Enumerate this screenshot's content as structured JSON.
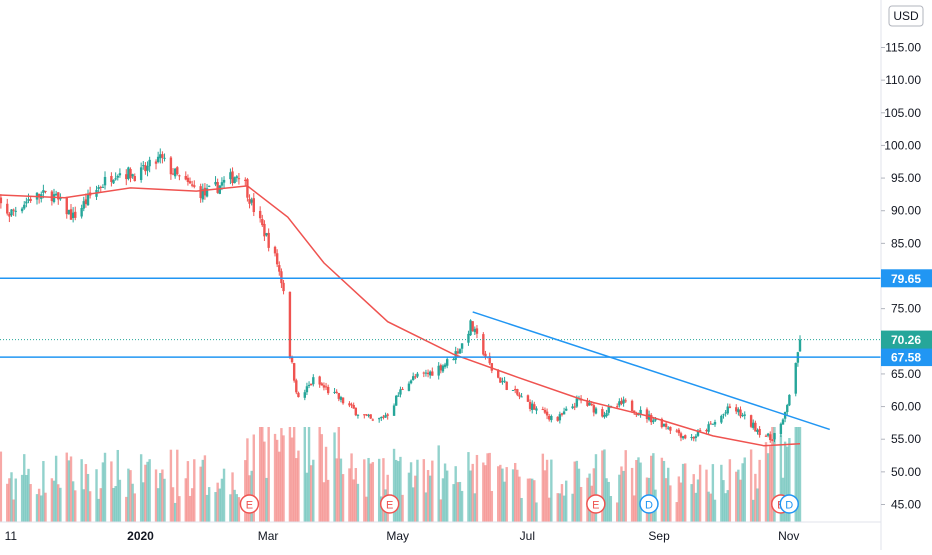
{
  "currency_label": "USD",
  "colors": {
    "up": "#26a69a",
    "down": "#ef5350",
    "ma": "#ef5350",
    "hline": "#2196f3",
    "trendline": "#2196f3",
    "last_price_bg": "#26a69a",
    "event_icon": "#ef5350",
    "dividend_icon": "#2196f3",
    "grid": "#f0f3fa"
  },
  "chart_data": {
    "type": "candlestick",
    "grid": false,
    "ylim": [
      43,
      119
    ],
    "y_ticks": [
      "115.00",
      "110.00",
      "105.00",
      "100.00",
      "95.00",
      "90.00",
      "85.00",
      "80.00",
      "75.00",
      "70.00",
      "65.00",
      "60.00",
      "55.00",
      "50.00",
      "45.00"
    ],
    "x_ticks": [
      {
        "label": "11",
        "date": "2019-11-01",
        "bold": false
      },
      {
        "label": "2020",
        "date": "2020-01-01",
        "bold": true
      },
      {
        "label": "Mar",
        "date": "2020-03-01",
        "bold": false
      },
      {
        "label": "May",
        "date": "2020-05-01",
        "bold": false
      },
      {
        "label": "Jul",
        "date": "2020-07-01",
        "bold": false
      },
      {
        "label": "Sep",
        "date": "2020-09-01",
        "bold": false
      },
      {
        "label": "Nov",
        "date": "2020-11-01",
        "bold": false
      }
    ],
    "price_path": [
      [
        "2019-10-25",
        93.0
      ],
      [
        "2019-11-05",
        89.5
      ],
      [
        "2019-11-15",
        92.0
      ],
      [
        "2019-11-25",
        92.5
      ],
      [
        "2019-12-05",
        89.0
      ],
      [
        "2019-12-15",
        93.0
      ],
      [
        "2019-12-25",
        96.0
      ],
      [
        "2020-01-05",
        95.5
      ],
      [
        "2020-01-15",
        98.0
      ],
      [
        "2020-01-25",
        94.5
      ],
      [
        "2020-02-05",
        92.5
      ],
      [
        "2020-02-15",
        94.5
      ],
      [
        "2020-02-22",
        96.0
      ],
      [
        "2020-02-27",
        91.0
      ],
      [
        "2020-03-05",
        86.0
      ],
      [
        "2020-03-10",
        82.0
      ],
      [
        "2020-03-13",
        78.0
      ],
      [
        "2020-03-16",
        68.0
      ],
      [
        "2020-03-20",
        61.0
      ],
      [
        "2020-03-27",
        64.0
      ],
      [
        "2020-04-05",
        62.0
      ],
      [
        "2020-04-15",
        59.5
      ],
      [
        "2020-04-25",
        57.5
      ],
      [
        "2020-05-01",
        59.0
      ],
      [
        "2020-05-10",
        64.0
      ],
      [
        "2020-05-20",
        65.0
      ],
      [
        "2020-05-30",
        67.0
      ],
      [
        "2020-06-05",
        69.5
      ],
      [
        "2020-06-09",
        72.5
      ],
      [
        "2020-06-15",
        68.5
      ],
      [
        "2020-06-20",
        65.0
      ],
      [
        "2020-06-30",
        62.0
      ],
      [
        "2020-07-10",
        59.5
      ],
      [
        "2020-07-20",
        58.0
      ],
      [
        "2020-07-30",
        61.0
      ],
      [
        "2020-08-10",
        59.0
      ],
      [
        "2020-08-20",
        60.5
      ],
      [
        "2020-08-31",
        58.5
      ],
      [
        "2020-09-10",
        57.0
      ],
      [
        "2020-09-20",
        55.0
      ],
      [
        "2020-09-30",
        57.0
      ],
      [
        "2020-10-10",
        60.0
      ],
      [
        "2020-10-20",
        57.0
      ],
      [
        "2020-10-28",
        55.0
      ],
      [
        "2020-11-03",
        57.5
      ],
      [
        "2020-11-06",
        62.0
      ],
      [
        "2020-11-09",
        66.0
      ],
      [
        "2020-11-11",
        70.26
      ]
    ],
    "moving_average": [
      [
        "2019-10-25",
        92.5
      ],
      [
        "2019-12-01",
        92.0
      ],
      [
        "2020-01-01",
        93.5
      ],
      [
        "2020-02-01",
        93.0
      ],
      [
        "2020-02-25",
        93.8
      ],
      [
        "2020-03-15",
        89.0
      ],
      [
        "2020-04-01",
        82.0
      ],
      [
        "2020-05-01",
        73.0
      ],
      [
        "2020-06-01",
        68.0
      ],
      [
        "2020-07-01",
        64.5
      ],
      [
        "2020-08-01",
        61.0
      ],
      [
        "2020-09-01",
        58.5
      ],
      [
        "2020-10-01",
        55.5
      ],
      [
        "2020-10-25",
        54.0
      ],
      [
        "2020-11-11",
        54.3
      ]
    ],
    "horizontal_lines": [
      {
        "value": 79.65,
        "label": "79.65"
      },
      {
        "value": 67.58,
        "label": "67.58"
      }
    ],
    "last_price": {
      "value": 70.26,
      "label": "70.26"
    },
    "trendline": {
      "start": [
        "2020-06-10",
        74.5
      ],
      "end": [
        "2020-11-25",
        56.5
      ]
    },
    "events": [
      {
        "type": "earnings",
        "label": "E",
        "date": "2019-10-25"
      },
      {
        "type": "earnings",
        "label": "E",
        "date": "2020-02-25"
      },
      {
        "type": "earnings",
        "label": "E",
        "date": "2020-05-01"
      },
      {
        "type": "earnings",
        "label": "E",
        "date": "2020-08-06"
      },
      {
        "type": "dividend",
        "label": "D",
        "date": "2020-08-31"
      },
      {
        "type": "earnings",
        "label": "E",
        "date": "2020-11-01"
      },
      {
        "type": "dividend",
        "label": "D",
        "date": "2020-11-05"
      }
    ]
  }
}
